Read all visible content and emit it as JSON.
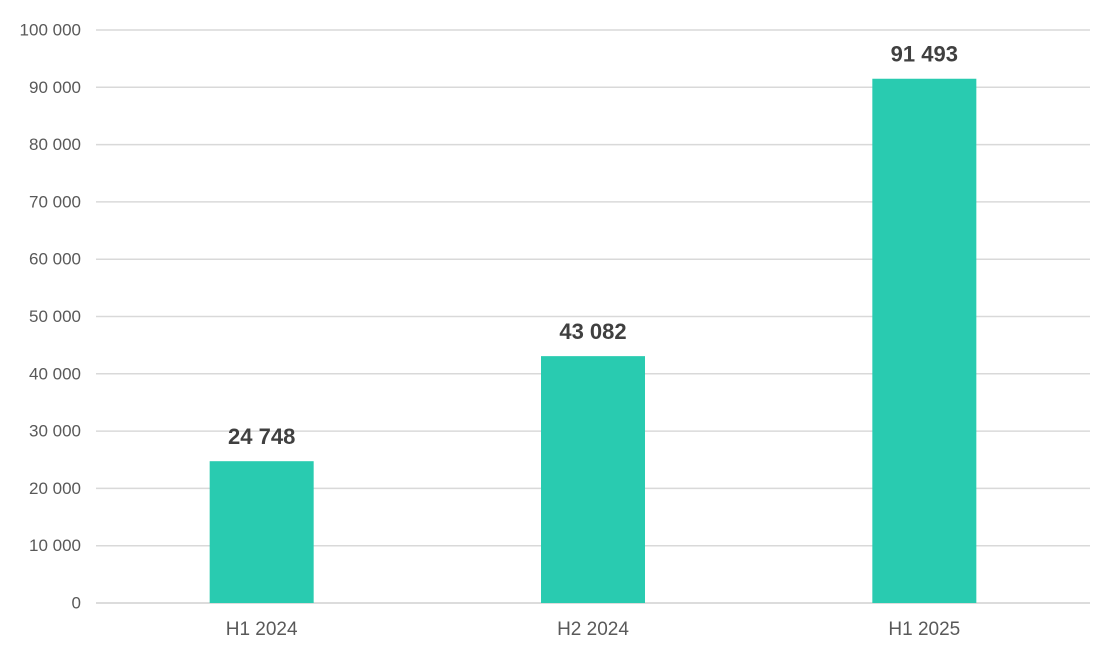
{
  "chart_data": {
    "type": "bar",
    "title": "",
    "xlabel": "",
    "ylabel": "",
    "categories": [
      "H1 2024",
      "H2 2024",
      "H1 2025"
    ],
    "values": [
      24748,
      43082,
      91493
    ],
    "data_labels": [
      "24 748",
      "43 082",
      "91 493"
    ],
    "ylim": [
      0,
      100000
    ],
    "yticks": [
      0,
      10000,
      20000,
      30000,
      40000,
      50000,
      60000,
      70000,
      80000,
      90000,
      100000
    ],
    "ytick_labels": [
      "0",
      "10 000",
      "20 000",
      "30 000",
      "40 000",
      "50 000",
      "60 000",
      "70 000",
      "80 000",
      "90 000",
      "100 000"
    ],
    "grid": true,
    "legend": "none",
    "bar_color": "#29cbb0"
  }
}
